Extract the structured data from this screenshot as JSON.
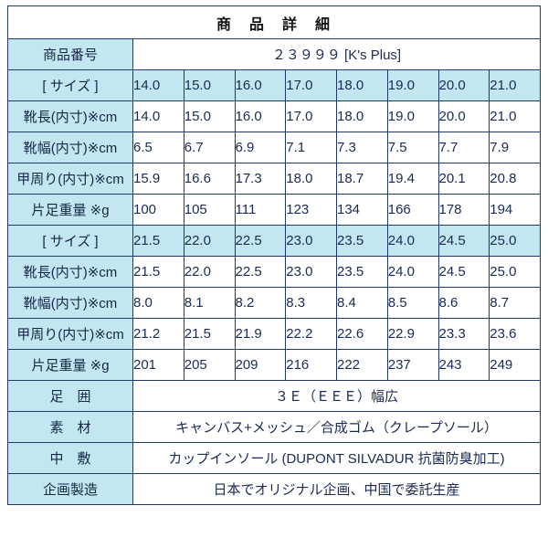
{
  "title": "商　品　詳　細",
  "colors": {
    "border": "#223a66",
    "header_bg": "#c3e7f1",
    "text": "#1a2a52"
  },
  "table": {
    "rows": [
      {
        "name": "product-number",
        "label": "商品番号",
        "value": "２３９９９ [K's Plus]"
      },
      {
        "name": "size-row-1",
        "label": "[ サイズ ]",
        "highlight": true,
        "values": [
          "14.0",
          "15.0",
          "16.0",
          "17.0",
          "18.0",
          "19.0",
          "20.0",
          "21.0"
        ]
      },
      {
        "name": "shoe-length-row-1",
        "label": "靴長(内寸)※cm",
        "values": [
          "14.0",
          "15.0",
          "16.0",
          "17.0",
          "18.0",
          "19.0",
          "20.0",
          "21.0"
        ]
      },
      {
        "name": "shoe-width-row-1",
        "label": "靴幅(内寸)※cm",
        "values": [
          "6.5",
          "6.7",
          "6.9",
          "7.1",
          "7.3",
          "7.5",
          "7.7",
          "7.9"
        ]
      },
      {
        "name": "girth-row-1",
        "label": "甲周り(内寸)※cm",
        "values": [
          "15.9",
          "16.6",
          "17.3",
          "18.0",
          "18.7",
          "19.4",
          "20.1",
          "20.8"
        ]
      },
      {
        "name": "weight-row-1",
        "label": "片足重量 ※g",
        "values": [
          "100",
          "105",
          "111",
          "123",
          "134",
          "166",
          "178",
          "194"
        ]
      },
      {
        "name": "size-row-2",
        "label": "[ サイズ ]",
        "highlight": true,
        "values": [
          "21.5",
          "22.0",
          "22.5",
          "23.0",
          "23.5",
          "24.0",
          "24.5",
          "25.0"
        ]
      },
      {
        "name": "shoe-length-row-2",
        "label": "靴長(内寸)※cm",
        "values": [
          "21.5",
          "22.0",
          "22.5",
          "23.0",
          "23.5",
          "24.0",
          "24.5",
          "25.0"
        ]
      },
      {
        "name": "shoe-width-row-2",
        "label": "靴幅(内寸)※cm",
        "values": [
          "8.0",
          "8.1",
          "8.2",
          "8.3",
          "8.4",
          "8.5",
          "8.6",
          "8.7"
        ]
      },
      {
        "name": "girth-row-2",
        "label": "甲周り(内寸)※cm",
        "values": [
          "21.2",
          "21.5",
          "21.9",
          "22.2",
          "22.6",
          "22.9",
          "23.3",
          "23.6"
        ]
      },
      {
        "name": "weight-row-2",
        "label": "片足重量 ※g",
        "values": [
          "201",
          "205",
          "209",
          "216",
          "222",
          "237",
          "243",
          "249"
        ]
      },
      {
        "name": "foot-girth",
        "label": "足　囲",
        "value": "３Ｅ（ＥＥＥ）幅広"
      },
      {
        "name": "material",
        "label": "素　材",
        "value": "キャンバス+メッシュ／合成ゴム（クレープソール）"
      },
      {
        "name": "insole",
        "label": "中　敷",
        "value": "カップインソール (DUPONT SILVADUR 抗菌防臭加工)"
      },
      {
        "name": "production",
        "label": "企画製造",
        "value": "日本でオリジナル企画、中国で委託生産"
      }
    ]
  }
}
